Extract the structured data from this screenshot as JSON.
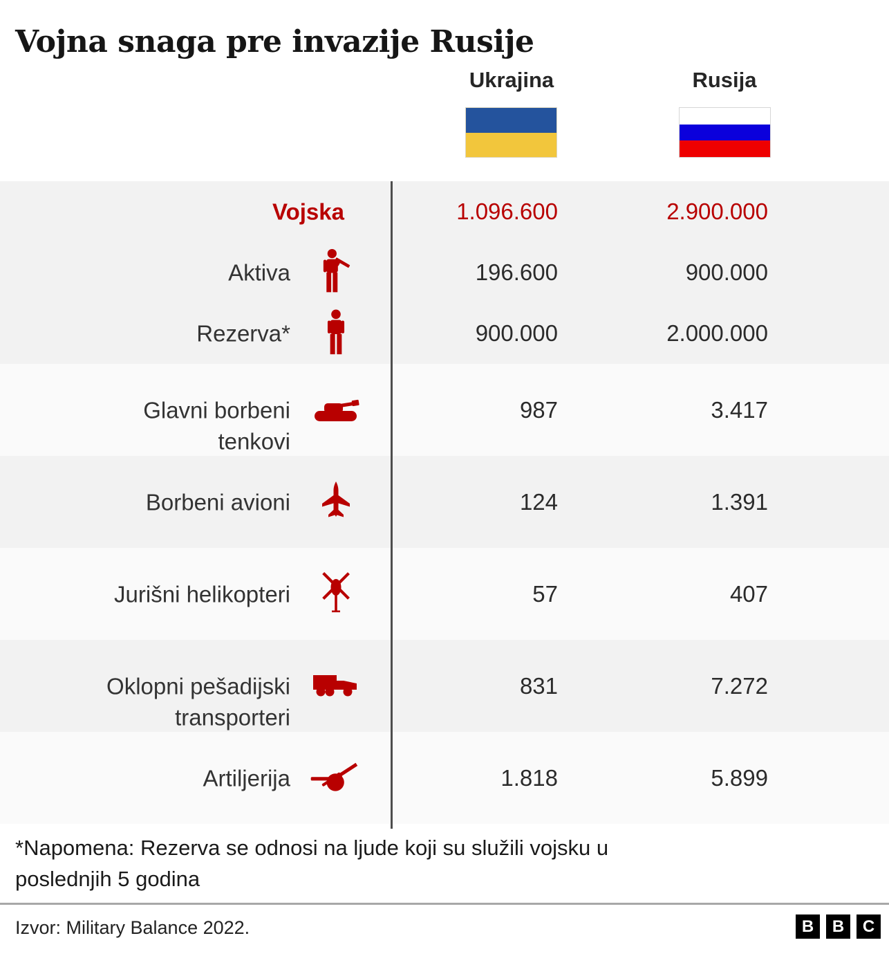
{
  "title": "Vojna snaga pre invazije Rusije",
  "columns": {
    "ukraine": {
      "label": "Ukrajina",
      "flag": "ukraine-flag"
    },
    "russia": {
      "label": "Rusija",
      "flag": "russia-flag"
    }
  },
  "rows": [
    {
      "label": "Vojska",
      "icon": null,
      "ukraine": "1.096.600",
      "russia": "2.900.000"
    },
    {
      "label": "Aktiva",
      "icon": "soldier-icon",
      "ukraine": "196.600",
      "russia": "900.000"
    },
    {
      "label": "Rezerva*",
      "icon": "person-icon",
      "ukraine": "900.000",
      "russia": "2.000.000"
    },
    {
      "label": "Glavni borbeni\ntenkovi",
      "icon": "tank-icon",
      "ukraine": "987",
      "russia": "3.417"
    },
    {
      "label": "Borbeni avioni",
      "icon": "jet-icon",
      "ukraine": "124",
      "russia": "1.391"
    },
    {
      "label": "Jurišni helikopteri",
      "icon": "helicopter-icon",
      "ukraine": "57",
      "russia": "407"
    },
    {
      "label": "Oklopni pešadijski\ntransporteri",
      "icon": "apc-icon",
      "ukraine": "831",
      "russia": "7.272"
    },
    {
      "label": "Artiljerija",
      "icon": "artillery-icon",
      "ukraine": "1.818",
      "russia": "5.899"
    }
  ],
  "note": "*Napomena: Rezerva se odnosi na ljude koji su služili vojsku u\nposlednjih 5 godina",
  "source": "Izvor: Military Balance 2022.",
  "logo": {
    "letters": [
      "B",
      "B",
      "C"
    ]
  },
  "colors": {
    "accent_red": "#b80000",
    "row_gray": "#f2f2f2",
    "row_light": "#fafafa",
    "divider_dark": "#4d4d4d",
    "divider_light": "#a8a8a8",
    "ukraine_blue": "#24539d",
    "ukraine_yellow": "#f2c63c",
    "russia_blue": "#0b00dc",
    "russia_red": "#ee0000"
  },
  "chart_data": {
    "type": "table",
    "title": "Vojna snaga pre invazije Rusije",
    "columns": [
      "Ukrajina",
      "Rusija"
    ],
    "categories": [
      "Vojska",
      "Aktiva",
      "Rezerva*",
      "Glavni borbeni tenkovi",
      "Borbeni avioni",
      "Jurišni helikopteri",
      "Oklopni pešadijski transporteri",
      "Artiljerija"
    ],
    "series": [
      {
        "name": "Ukrajina",
        "values": [
          1096600,
          196600,
          900000,
          987,
          124,
          57,
          831,
          1818
        ]
      },
      {
        "name": "Rusija",
        "values": [
          2900000,
          900000,
          2000000,
          3417,
          1391,
          407,
          7272,
          5899
        ]
      }
    ],
    "note": "*Napomena: Rezerva se odnosi na ljude koji su služili vojsku u poslednjih 5 godina",
    "source": "Izvor: Military Balance 2022."
  }
}
